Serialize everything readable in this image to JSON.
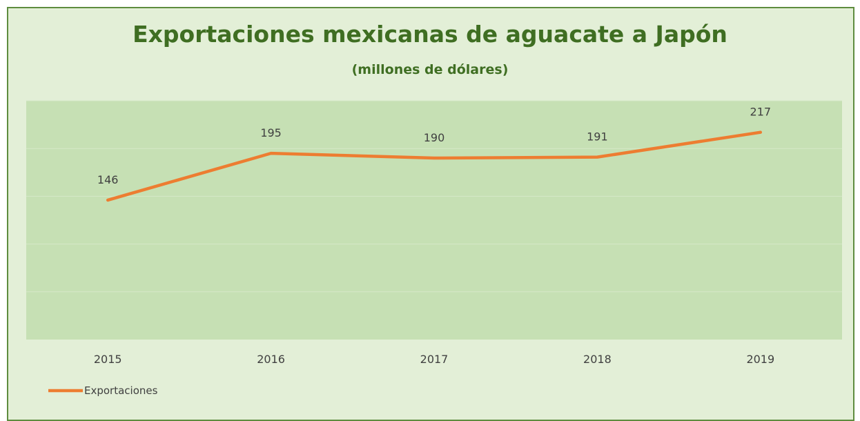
{
  "chart_data": {
    "type": "line",
    "title": "Exportaciones mexicanas de aguacate a Japón",
    "subtitle": "(millones de dólares)",
    "categories": [
      "2015",
      "2016",
      "2017",
      "2018",
      "2019"
    ],
    "series": [
      {
        "name": "Exportaciones",
        "values": [
          146,
          195,
          190,
          191,
          217
        ],
        "color": "#ed7d31"
      }
    ],
    "data_labels": [
      "146",
      "195",
      "190",
      "191",
      "217"
    ],
    "ylim": [
      0,
      250
    ],
    "grid": true,
    "legend": "bottom-left",
    "colors": {
      "plot_background": "#c6e0b4",
      "chart_background": "#e3efd7",
      "title": "#3f6e22",
      "border": "#5e8c3e"
    }
  }
}
